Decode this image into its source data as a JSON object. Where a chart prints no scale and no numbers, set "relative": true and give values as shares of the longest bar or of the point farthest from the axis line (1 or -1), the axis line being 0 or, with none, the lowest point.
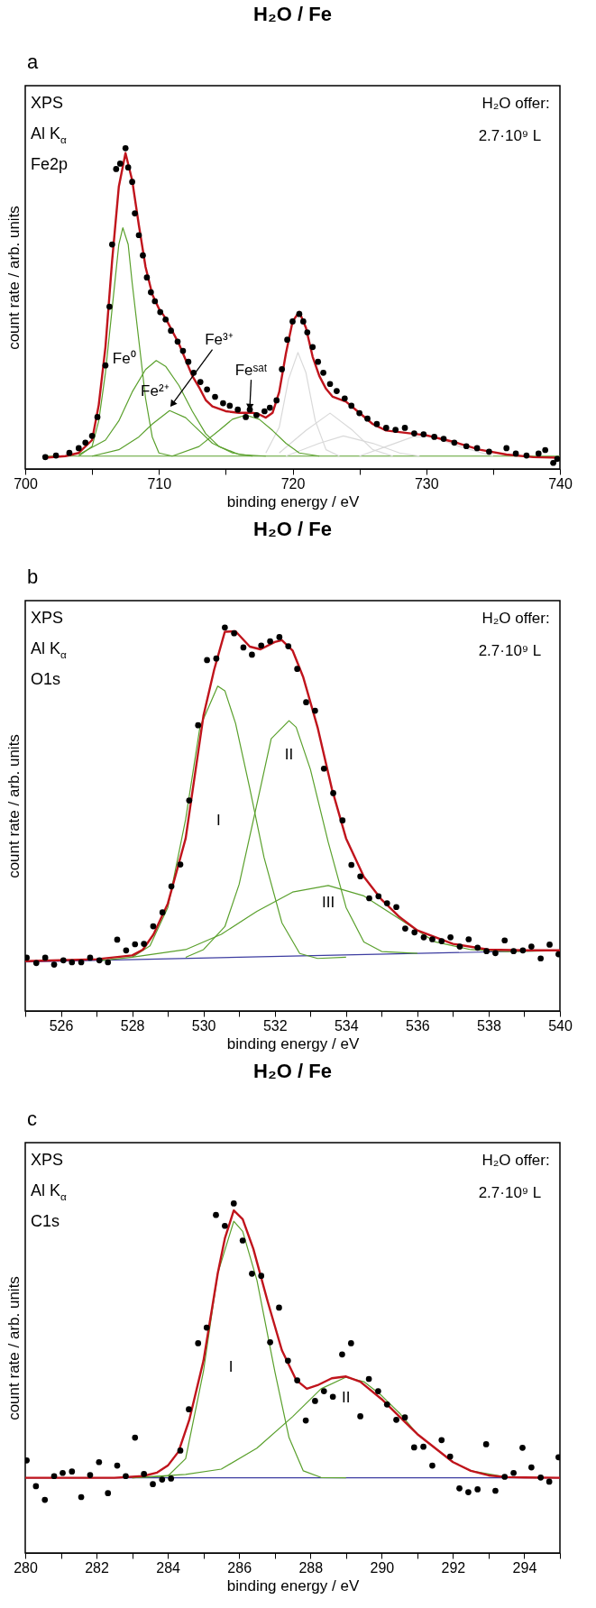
{
  "chart_data": [
    {
      "type": "line",
      "title": "H₂O / Fe",
      "xlabel": "binding energy / eV",
      "ylabel": "count rate / arb. units",
      "relative": true,
      "xlim": [
        700,
        740
      ],
      "xticks": [
        700,
        {
          "value": 705,
          "label": null
        },
        710,
        {
          "value": 715,
          "label": null
        },
        720,
        {
          "value": 725,
          "label": null
        },
        730,
        {
          "value": 735,
          "label": null
        },
        740
      ],
      "annotations": [
        "a",
        "XPS",
        "Al K$_{α}$",
        "Fe2p",
        "H₂O offer:",
        "2.7·10⁹ L"
      ],
      "series": [
        {
          "color": "#5aa02c",
          "x": [
            701.5,
            740
          ],
          "values": [
            0.04,
            0.04
          ]
        },
        {
          "color": "#d9d9d9",
          "x": [
            718,
            719,
            719.7,
            720.4,
            721,
            721.7,
            722.5,
            723.5
          ],
          "values": [
            0.05,
            0.13,
            0.28,
            0.363,
            0.3,
            0.15,
            0.06,
            0.04
          ]
        },
        {
          "color": "#d9d9d9",
          "x": [
            719,
            721,
            722.8,
            724.5,
            726,
            727.5
          ],
          "values": [
            0.05,
            0.12,
            0.174,
            0.12,
            0.06,
            0.04
          ]
        },
        {
          "color": "#d9d9d9",
          "x": [
            719.5,
            722,
            723.8,
            726,
            728,
            729.5
          ],
          "values": [
            0.04,
            0.08,
            0.103,
            0.08,
            0.05,
            0.04
          ]
        },
        {
          "color": "#d9d9d9",
          "x": [
            725,
            727,
            729,
            730.5,
            732.5,
            735
          ],
          "values": [
            0.04,
            0.07,
            0.1,
            0.1,
            0.07,
            0.04
          ]
        },
        {
          "name": "Fe⁰",
          "color": "#5aa02c",
          "x": [
            704,
            705,
            705.5,
            706,
            706.5,
            707,
            707.3,
            707.7,
            708,
            708.5,
            709,
            709.5,
            710,
            711
          ],
          "values": [
            0.04,
            0.07,
            0.15,
            0.3,
            0.5,
            0.7,
            0.752,
            0.7,
            0.58,
            0.4,
            0.22,
            0.1,
            0.05,
            0.04
          ]
        },
        {
          "name": "Fe²⁺",
          "color": "#5aa02c",
          "x": [
            704,
            706,
            707,
            708,
            709,
            709.8,
            710.5,
            711.5,
            712.5,
            713.5,
            714.5,
            716,
            718
          ],
          "values": [
            0.045,
            0.09,
            0.15,
            0.24,
            0.31,
            0.338,
            0.32,
            0.26,
            0.18,
            0.11,
            0.07,
            0.045,
            0.04
          ]
        },
        {
          "name": "Fe³⁺",
          "color": "#5aa02c",
          "x": [
            705,
            707,
            708.5,
            709.5,
            710.8,
            712,
            713,
            714,
            715.5,
            717
          ],
          "values": [
            0.04,
            0.06,
            0.1,
            0.14,
            0.182,
            0.16,
            0.12,
            0.08,
            0.05,
            0.04
          ]
        },
        {
          "name": "Feˢᵃᵗ",
          "color": "#5aa02c",
          "x": [
            711,
            713,
            714.5,
            715.5,
            716.5,
            717.5,
            718.5,
            719.5,
            720.5,
            722
          ],
          "values": [
            0.04,
            0.07,
            0.12,
            0.155,
            0.168,
            0.155,
            0.12,
            0.08,
            0.05,
            0.04
          ]
        },
        {
          "color": "#c0141c",
          "x": [
            701.5,
            703,
            704,
            705,
            705.5,
            706,
            706.5,
            707,
            707.5,
            708,
            708.5,
            709,
            709.5,
            710,
            710.5,
            711,
            711.5,
            712,
            712.5,
            713,
            713.5,
            714,
            715,
            716,
            717,
            717.5,
            718,
            718.5,
            719,
            719.5,
            720,
            720.5,
            721,
            721.5,
            722,
            722.5,
            723,
            724,
            725,
            726,
            727,
            728,
            729,
            730,
            731,
            732,
            734,
            736,
            738,
            740
          ],
          "values": [
            0.035,
            0.04,
            0.05,
            0.09,
            0.2,
            0.38,
            0.65,
            0.88,
            0.985,
            0.9,
            0.76,
            0.63,
            0.545,
            0.5,
            0.47,
            0.43,
            0.39,
            0.34,
            0.29,
            0.255,
            0.215,
            0.195,
            0.18,
            0.175,
            0.175,
            0.17,
            0.16,
            0.175,
            0.24,
            0.36,
            0.46,
            0.49,
            0.44,
            0.35,
            0.29,
            0.25,
            0.225,
            0.21,
            0.175,
            0.14,
            0.12,
            0.115,
            0.11,
            0.105,
            0.095,
            0.085,
            0.06,
            0.045,
            0.037,
            0.035
          ]
        },
        {
          "type": "scatter",
          "marker": "circle",
          "color": "#000000",
          "x": [
            701.5,
            702.3,
            703.3,
            704.0,
            704.5,
            705.0,
            705.4,
            706.0,
            706.3,
            706.5,
            706.8,
            707.1,
            707.5,
            707.7,
            708.0,
            708.2,
            708.5,
            708.8,
            709.1,
            709.4,
            709.7,
            710.1,
            710.5,
            710.9,
            711.4,
            711.8,
            712.2,
            712.6,
            713.1,
            713.6,
            714.2,
            714.8,
            715.3,
            715.9,
            716.5,
            716.8,
            717.3,
            717.9,
            718.3,
            718.8,
            719.2,
            719.6,
            720.0,
            720.5,
            720.8,
            721.1,
            721.5,
            721.9,
            722.3,
            722.8,
            723.3,
            723.9,
            724.4,
            725.0,
            725.6,
            726.3,
            727.0,
            727.7,
            728.4,
            729.1,
            729.8,
            730.6,
            731.3,
            732.1,
            733.0,
            733.8,
            734.7,
            736.0,
            736.7,
            737.5,
            738.4,
            738.9,
            739.5,
            739.8
          ],
          "values": [
            0.037,
            0.042,
            0.05,
            0.065,
            0.082,
            0.103,
            0.162,
            0.323,
            0.506,
            0.7,
            0.935,
            0.952,
            1.0,
            0.94,
            0.895,
            0.797,
            0.729,
            0.666,
            0.597,
            0.551,
            0.523,
            0.489,
            0.466,
            0.431,
            0.397,
            0.368,
            0.334,
            0.3,
            0.271,
            0.248,
            0.225,
            0.205,
            0.197,
            0.185,
            0.162,
            0.185,
            0.168,
            0.18,
            0.191,
            0.214,
            0.311,
            0.403,
            0.46,
            0.483,
            0.46,
            0.426,
            0.38,
            0.334,
            0.3,
            0.265,
            0.243,
            0.22,
            0.197,
            0.174,
            0.157,
            0.14,
            0.128,
            0.122,
            0.128,
            0.111,
            0.108,
            0.1,
            0.094,
            0.082,
            0.071,
            0.065,
            0.054,
            0.065,
            0.048,
            0.042,
            0.048,
            0.059,
            0.019,
            0.031
          ]
        }
      ]
    },
    {
      "type": "line",
      "title": "H₂O / Fe",
      "xlabel": "binding energy / eV",
      "ylabel": "count rate / arb. units",
      "relative": true,
      "xlim": [
        525,
        540
      ],
      "xticks": [
        {
          "value": 525,
          "label": null
        },
        526,
        {
          "value": 527,
          "label": null
        },
        528,
        {
          "value": 529,
          "label": null
        },
        530,
        {
          "value": 531,
          "label": null
        },
        532,
        {
          "value": 533,
          "label": null
        },
        534,
        {
          "value": 535,
          "label": null
        },
        536,
        {
          "value": 537,
          "label": null
        },
        538,
        {
          "value": 539,
          "label": null
        },
        540
      ],
      "annotations": [
        "b",
        "XPS",
        "Al K$_{α}$",
        "O1s",
        "H₂O offer:",
        "2.7·10⁹ L"
      ],
      "series": [
        {
          "color": "#3c3ca0",
          "x": [
            525,
            540
          ],
          "values": [
            0.128,
            0.158
          ]
        },
        {
          "name": "I",
          "color": "#5aa02c",
          "x": [
            527,
            528,
            528.5,
            529,
            529.5,
            529.9,
            530.4,
            530.6,
            530.9,
            531.3,
            531.7,
            532.2,
            532.7,
            533.2,
            534
          ],
          "values": [
            0.13,
            0.14,
            0.17,
            0.27,
            0.5,
            0.74,
            0.847,
            0.835,
            0.75,
            0.58,
            0.4,
            0.23,
            0.15,
            0.137,
            0.14
          ]
        },
        {
          "name": "II",
          "color": "#5aa02c",
          "x": [
            529.5,
            530,
            530.6,
            531,
            531.5,
            531.9,
            532.4,
            532.6,
            533,
            533.5,
            534,
            534.5,
            535,
            536
          ],
          "values": [
            0.14,
            0.16,
            0.22,
            0.33,
            0.54,
            0.71,
            0.757,
            0.74,
            0.63,
            0.44,
            0.27,
            0.18,
            0.155,
            0.15
          ]
        },
        {
          "name": "III",
          "color": "#5aa02c",
          "x": [
            528,
            529.5,
            530.5,
            531.5,
            532.5,
            533.5,
            534.5,
            535.5,
            536.5,
            537.5,
            538.5,
            540
          ],
          "values": [
            0.14,
            0.16,
            0.2,
            0.26,
            0.31,
            0.327,
            0.3,
            0.24,
            0.18,
            0.16,
            0.155,
            0.157
          ]
        },
        {
          "color": "#c0141c",
          "x": [
            525,
            527,
            528,
            528.3,
            528.6,
            529,
            529.5,
            530,
            530.3,
            530.6,
            530.9,
            531.3,
            531.6,
            532,
            532.2,
            532.5,
            532.8,
            533.2,
            533.6,
            534,
            534.5,
            535,
            535.5,
            536,
            537,
            538,
            539,
            540
          ],
          "values": [
            0.13,
            0.135,
            0.145,
            0.16,
            0.2,
            0.28,
            0.45,
            0.77,
            0.89,
            0.989,
            0.99,
            0.95,
            0.943,
            0.962,
            0.967,
            0.94,
            0.87,
            0.74,
            0.58,
            0.45,
            0.35,
            0.29,
            0.245,
            0.21,
            0.175,
            0.16,
            0.158,
            0.158
          ]
        },
        {
          "type": "scatter",
          "marker": "circle",
          "color": "#000000",
          "x": [
            525.04,
            525.31,
            525.56,
            525.81,
            526.07,
            526.31,
            526.57,
            526.82,
            527.08,
            527.32,
            527.58,
            527.83,
            528.08,
            528.33,
            528.59,
            528.85,
            529.1,
            529.35,
            529.6,
            529.85,
            530.1,
            530.36,
            530.6,
            530.86,
            531.12,
            531.36,
            531.62,
            531.87,
            532.13,
            532.38,
            532.63,
            532.88,
            533.13,
            533.38,
            533.64,
            533.9,
            534.15,
            534.4,
            534.65,
            534.91,
            535.15,
            535.41,
            535.66,
            535.92,
            536.18,
            536.42,
            536.68,
            536.93,
            537.19,
            537.44,
            537.69,
            537.94,
            538.19,
            538.45,
            538.7,
            538.96,
            539.2,
            539.46,
            539.71,
            539.96
          ],
          "values": [
            0.139,
            0.125,
            0.139,
            0.121,
            0.132,
            0.127,
            0.127,
            0.139,
            0.132,
            0.127,
            0.186,
            0.158,
            0.174,
            0.175,
            0.221,
            0.257,
            0.325,
            0.382,
            0.549,
            0.745,
            0.915,
            0.919,
            1.0,
            0.985,
            0.948,
            0.929,
            0.953,
            0.964,
            0.975,
            0.951,
            0.892,
            0.805,
            0.783,
            0.632,
            0.568,
            0.497,
            0.381,
            0.351,
            0.294,
            0.299,
            0.281,
            0.271,
            0.215,
            0.205,
            0.192,
            0.187,
            0.182,
            0.192,
            0.168,
            0.187,
            0.165,
            0.156,
            0.151,
            0.184,
            0.156,
            0.158,
            0.168,
            0.137,
            0.173,
            0.148
          ]
        }
      ]
    },
    {
      "type": "line",
      "title": "H₂O / Fe",
      "xlabel": "binding energy / eV",
      "ylabel": "count rate / arb. units",
      "relative": true,
      "xlim": [
        280,
        295
      ],
      "xticks": [
        280,
        {
          "value": 281,
          "label": null
        },
        282,
        {
          "value": 283,
          "label": null
        },
        284,
        {
          "value": 285,
          "label": null
        },
        286,
        {
          "value": 287,
          "label": null
        },
        288,
        {
          "value": 289,
          "label": null
        },
        290,
        {
          "value": 291,
          "label": null
        },
        292,
        {
          "value": 293,
          "label": null
        },
        294,
        {
          "value": 295,
          "label": null
        }
      ],
      "annotations": [
        "c",
        "XPS",
        "Al K$_{α}$",
        "C1s",
        "H₂O offer:",
        "2.7·10⁹ L"
      ],
      "series": [
        {
          "color": "#3c3ca0",
          "x": [
            280,
            295
          ],
          "values": [
            0.215,
            0.215
          ]
        },
        {
          "name": "I",
          "color": "#5aa02c",
          "x": [
            283,
            284,
            284.5,
            285,
            285.4,
            285.85,
            286.1,
            286.5,
            287,
            287.4,
            287.8,
            288.3,
            289
          ],
          "values": [
            0.215,
            0.22,
            0.27,
            0.52,
            0.8,
            0.949,
            0.92,
            0.78,
            0.52,
            0.33,
            0.235,
            0.216,
            0.215
          ]
        },
        {
          "name": "II",
          "color": "#5aa02c",
          "x": [
            283,
            284.5,
            285.5,
            286.5,
            287.5,
            288.3,
            289,
            289.5,
            290,
            290.5,
            291,
            291.5,
            292,
            292.5,
            293.5,
            294.5
          ],
          "values": [
            0.215,
            0.225,
            0.24,
            0.3,
            0.39,
            0.47,
            0.503,
            0.49,
            0.45,
            0.4,
            0.34,
            0.3,
            0.26,
            0.235,
            0.217,
            0.215
          ]
        },
        {
          "color": "#c0141c",
          "x": [
            280,
            282.5,
            283.3,
            283.7,
            284,
            284.3,
            284.6,
            285,
            285.4,
            285.6,
            285.85,
            286.1,
            286.4,
            286.8,
            287.2,
            287.6,
            287.9,
            288.2,
            288.6,
            289,
            289.4,
            290,
            290.5,
            291,
            291.5,
            292,
            292.5,
            293,
            293.5,
            294,
            295
          ],
          "values": [
            0.215,
            0.215,
            0.22,
            0.23,
            0.25,
            0.29,
            0.38,
            0.55,
            0.8,
            0.9,
            0.98,
            0.955,
            0.87,
            0.72,
            0.58,
            0.495,
            0.47,
            0.48,
            0.5,
            0.505,
            0.49,
            0.44,
            0.39,
            0.34,
            0.3,
            0.26,
            0.235,
            0.222,
            0.217,
            0.216,
            0.215
          ]
        },
        {
          "type": "scatter",
          "marker": "circle",
          "color": "#000000",
          "x": [
            280.04,
            280.3,
            280.55,
            280.81,
            281.05,
            281.31,
            281.57,
            281.82,
            282.07,
            282.32,
            282.58,
            282.82,
            283.08,
            283.33,
            283.58,
            283.84,
            284.09,
            284.35,
            284.59,
            284.85,
            285.09,
            285.35,
            285.6,
            285.85,
            286.1,
            286.36,
            286.62,
            286.87,
            287.12,
            287.37,
            287.63,
            287.87,
            288.13,
            288.38,
            288.63,
            288.89,
            289.14,
            289.4,
            289.64,
            289.9,
            290.15,
            290.41,
            290.65,
            290.91,
            291.17,
            291.42,
            291.68,
            291.92,
            292.18,
            292.43,
            292.69,
            292.93,
            293.19,
            293.45,
            293.7,
            293.95,
            294.2,
            294.46,
            294.7,
            294.96
          ],
          "values": [
            0.265,
            0.191,
            0.152,
            0.22,
            0.229,
            0.233,
            0.16,
            0.223,
            0.26,
            0.171,
            0.25,
            0.22,
            0.33,
            0.226,
            0.197,
            0.21,
            0.213,
            0.293,
            0.411,
            0.6,
            0.645,
            0.967,
            0.936,
            1.0,
            0.894,
            0.799,
            0.793,
            0.603,
            0.702,
            0.55,
            0.494,
            0.379,
            0.435,
            0.463,
            0.447,
            0.568,
            0.6,
            0.391,
            0.498,
            0.463,
            0.425,
            0.381,
            0.388,
            0.302,
            0.304,
            0.25,
            0.323,
            0.276,
            0.185,
            0.174,
            0.182,
            0.311,
            0.178,
            0.218,
            0.229,
            0.301,
            0.245,
            0.216,
            0.204,
            0.274
          ]
        }
      ]
    }
  ]
}
